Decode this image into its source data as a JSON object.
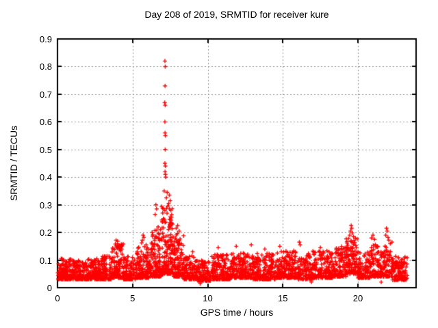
{
  "chart_data": {
    "type": "scatter",
    "title": "Day 208 of 2019, SRMTID for receiver kure",
    "xlabel": "GPS time / hours",
    "ylabel": "SRMTID / TECUs",
    "xlim": [
      0,
      23.87
    ],
    "ylim": [
      0,
      0.9
    ],
    "xticks": [
      0,
      5,
      10,
      15,
      20
    ],
    "yticks": [
      0,
      0.1,
      0.2,
      0.3,
      0.4,
      0.5,
      0.6,
      0.7,
      0.8,
      0.9
    ],
    "grid": "dashed",
    "grid_color": "#8c8c8c",
    "frame_color": "#000000",
    "marker": "plus",
    "marker_color": "#ff0000",
    "legend": "none",
    "series": [
      {
        "name": "SRMTID",
        "seed": 1337,
        "outliers": [
          [
            7.15,
            0.82
          ],
          [
            7.17,
            0.8
          ],
          [
            7.16,
            0.73
          ],
          [
            7.14,
            0.67
          ],
          [
            7.17,
            0.66
          ],
          [
            7.15,
            0.6
          ],
          [
            7.16,
            0.56
          ],
          [
            7.18,
            0.55
          ],
          [
            7.17,
            0.5
          ],
          [
            7.15,
            0.45
          ],
          [
            7.18,
            0.44
          ],
          [
            7.16,
            0.42
          ],
          [
            7.2,
            0.4
          ],
          [
            7.18,
            0.41
          ],
          [
            7.1,
            0.35
          ],
          [
            7.3,
            0.345
          ],
          [
            7.45,
            0.335
          ],
          [
            7.25,
            0.325
          ],
          [
            7.5,
            0.315
          ],
          [
            7.4,
            0.305
          ],
          [
            6.55,
            0.3
          ],
          [
            7.35,
            0.295
          ],
          [
            6.6,
            0.285
          ],
          [
            7.55,
            0.28
          ],
          [
            7.0,
            0.27
          ],
          [
            6.5,
            0.265
          ],
          [
            7.6,
            0.255
          ],
          [
            6.95,
            0.245
          ],
          [
            7.48,
            0.235
          ],
          [
            7.65,
            0.23
          ],
          [
            8.0,
            0.225
          ],
          [
            7.9,
            0.215
          ],
          [
            8.1,
            0.205
          ],
          [
            6.7,
            0.22
          ],
          [
            6.85,
            0.21
          ],
          [
            6.3,
            0.2
          ],
          [
            6.35,
            0.19
          ],
          [
            3.9,
            0.172
          ],
          [
            4.0,
            0.168
          ],
          [
            3.85,
            0.158
          ],
          [
            4.05,
            0.152
          ],
          [
            3.95,
            0.147
          ],
          [
            4.15,
            0.142
          ],
          [
            3.8,
            0.138
          ],
          [
            4.2,
            0.132
          ],
          [
            5.7,
            0.19
          ],
          [
            5.75,
            0.182
          ],
          [
            5.65,
            0.172
          ],
          [
            5.6,
            0.162
          ],
          [
            5.9,
            0.155
          ],
          [
            9.0,
            0.13
          ],
          [
            10.7,
            0.145
          ],
          [
            11.9,
            0.15
          ],
          [
            12.9,
            0.155
          ],
          [
            13.8,
            0.14
          ],
          [
            14.8,
            0.15
          ],
          [
            16.1,
            0.165
          ],
          [
            16.15,
            0.155
          ],
          [
            17.5,
            0.145
          ],
          [
            19.55,
            0.225
          ],
          [
            19.58,
            0.215
          ],
          [
            19.5,
            0.205
          ],
          [
            19.62,
            0.198
          ],
          [
            19.45,
            0.19
          ],
          [
            19.7,
            0.185
          ],
          [
            20.9,
            0.18
          ],
          [
            21.0,
            0.19
          ],
          [
            21.1,
            0.175
          ],
          [
            21.85,
            0.19
          ],
          [
            21.9,
            0.215
          ],
          [
            21.95,
            0.205
          ],
          [
            22.0,
            0.182
          ],
          [
            22.05,
            0.172
          ],
          [
            9.5,
            0.015
          ],
          [
            16.9,
            0.02
          ],
          [
            21.55,
            0.02
          ],
          [
            22.6,
            0.028
          ]
        ],
        "noise_bands": [
          [
            0.0,
            1.0,
            150,
            0.03,
            0.105
          ],
          [
            1.0,
            2.0,
            150,
            0.03,
            0.1
          ],
          [
            2.0,
            3.0,
            150,
            0.03,
            0.105
          ],
          [
            3.0,
            3.6,
            90,
            0.03,
            0.115
          ],
          [
            3.6,
            4.4,
            120,
            0.035,
            0.16
          ],
          [
            4.4,
            5.2,
            110,
            0.03,
            0.115
          ],
          [
            5.2,
            6.2,
            140,
            0.035,
            0.15
          ],
          [
            6.2,
            6.9,
            120,
            0.04,
            0.21
          ],
          [
            6.9,
            7.7,
            160,
            0.05,
            0.3
          ],
          [
            7.7,
            8.4,
            120,
            0.04,
            0.2
          ],
          [
            8.4,
            9.3,
            110,
            0.03,
            0.115
          ],
          [
            9.3,
            10.2,
            110,
            0.025,
            0.1
          ],
          [
            10.2,
            11.5,
            170,
            0.03,
            0.12
          ],
          [
            11.5,
            13.0,
            200,
            0.035,
            0.125
          ],
          [
            13.0,
            14.5,
            200,
            0.03,
            0.125
          ],
          [
            14.5,
            16.0,
            200,
            0.035,
            0.135
          ],
          [
            16.0,
            17.0,
            130,
            0.03,
            0.125
          ],
          [
            17.0,
            18.3,
            170,
            0.035,
            0.135
          ],
          [
            18.3,
            19.2,
            120,
            0.04,
            0.15
          ],
          [
            19.2,
            20.0,
            110,
            0.05,
            0.185
          ],
          [
            20.0,
            20.8,
            100,
            0.035,
            0.13
          ],
          [
            20.8,
            21.5,
            90,
            0.04,
            0.165
          ],
          [
            21.5,
            22.3,
            100,
            0.04,
            0.18
          ],
          [
            22.3,
            23.3,
            130,
            0.028,
            0.115
          ]
        ]
      }
    ]
  }
}
